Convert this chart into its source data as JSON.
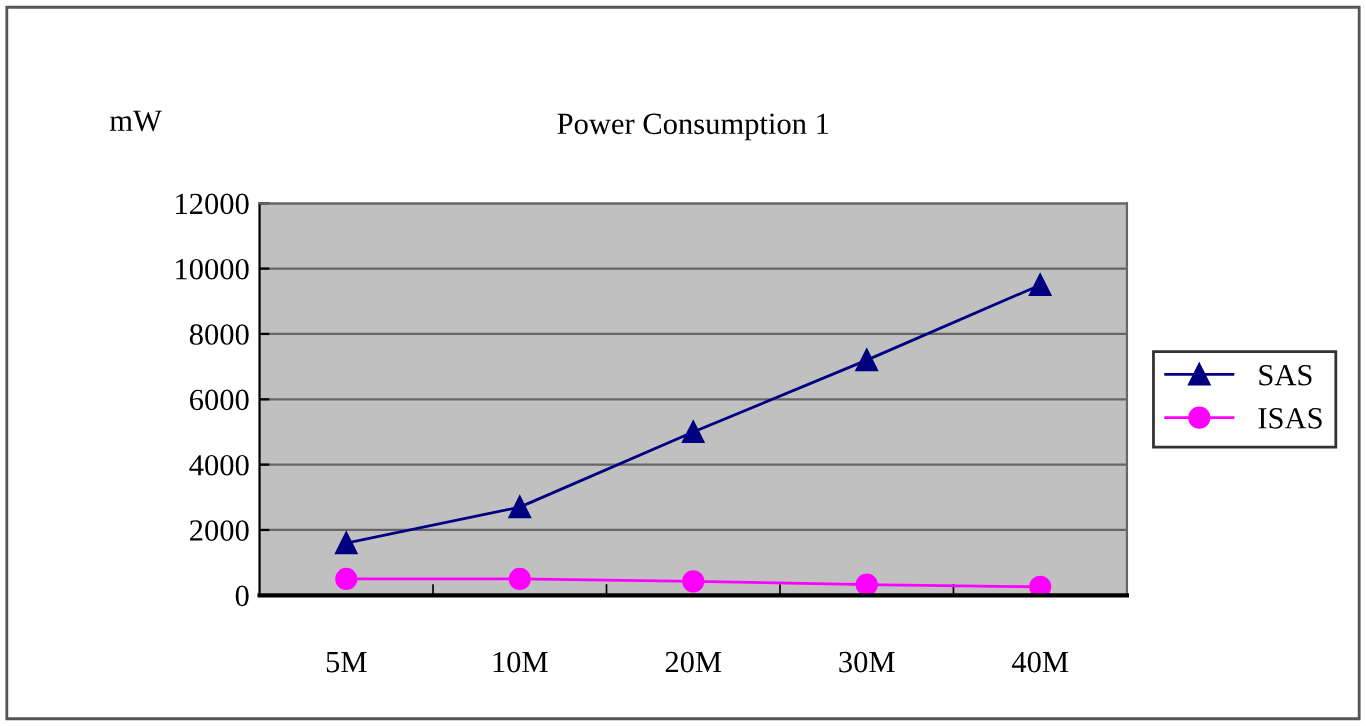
{
  "chart_data": {
    "type": "line",
    "title": "Power Consumption 1",
    "ylabel": "mW",
    "categories": [
      "5M",
      "10M",
      "20M",
      "30M",
      "40M"
    ],
    "series": [
      {
        "name": "SAS",
        "color": "#000080",
        "values": [
          1600,
          2700,
          5000,
          7200,
          9500
        ],
        "marker": "triangle"
      },
      {
        "name": "ISAS",
        "color": "#ff00ff",
        "values": [
          500,
          500,
          430,
          330,
          260
        ],
        "marker": "circle"
      }
    ],
    "ylim": [
      0,
      12000
    ],
    "yticks": [
      0,
      2000,
      4000,
      6000,
      8000,
      10000,
      12000
    ],
    "grid": "y",
    "legend": "right"
  }
}
